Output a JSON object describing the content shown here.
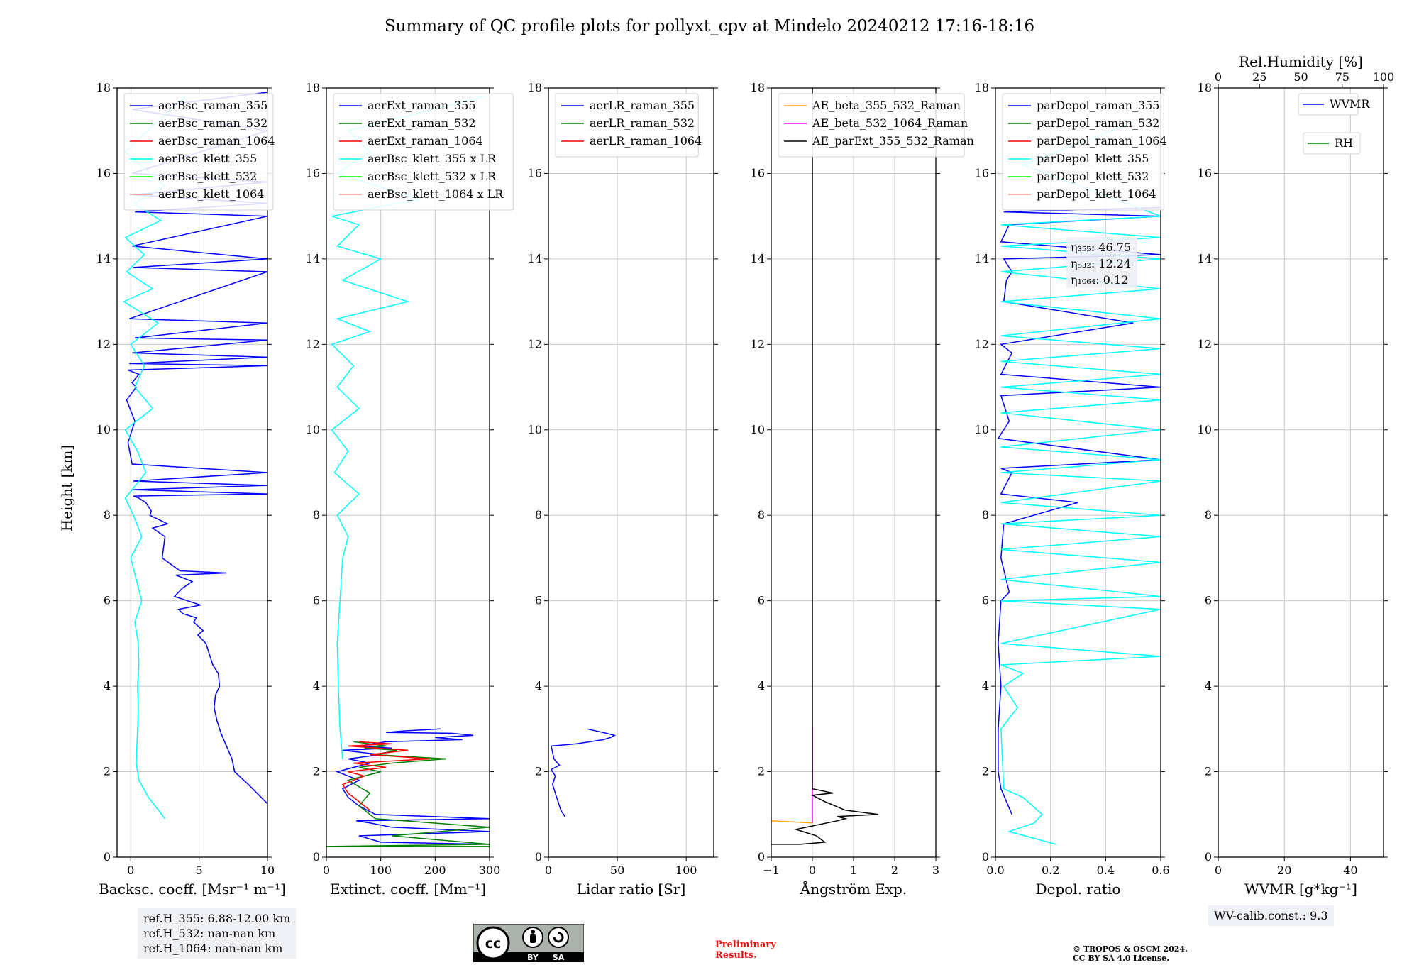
{
  "title": "Summary of QC profile plots for pollyxt_cpv at Mindelo 20240212 17:16-18:16",
  "ylabel": "Height [km]",
  "chart_data": [
    {
      "type": "line",
      "id": "bsc",
      "xlabel": "Backsc. coeff. [Msr⁻¹ m⁻¹]",
      "xlim": [
        -1,
        10
      ],
      "ylim": [
        0,
        18
      ],
      "xticks": [
        0,
        5,
        10
      ],
      "yticks": [
        0,
        2,
        4,
        6,
        8,
        10,
        12,
        14,
        16,
        18
      ],
      "legend": [
        "aerBsc_raman_355",
        "aerBsc_raman_532",
        "aerBsc_raman_1064",
        "aerBsc_klett_355",
        "aerBsc_klett_532",
        "aerBsc_klett_1064"
      ],
      "legend_colors": [
        "#0000ff",
        "#008000",
        "#ff0000",
        "#00ffff",
        "#00ff00",
        "#ff9090"
      ],
      "series": [
        {
          "name": "aerBsc_raman_355",
          "color": "#0000ff",
          "x": [
            10.0,
            8.6,
            7.6,
            7.4,
            7.0,
            6.6,
            6.3,
            6.1,
            6.2,
            6.5,
            6.4,
            6.0,
            5.7,
            5.5,
            4.9,
            5.3,
            4.6,
            4.8,
            3.8,
            3.5,
            5.1,
            3.2,
            3.8,
            4.5,
            3.3,
            7.0,
            3.6,
            2.3,
            2.5,
            1.6,
            2.7,
            1.4,
            1.5,
            1.1,
            0.6,
            0.2,
            10.0,
            0.2,
            10.0,
            0.2,
            10.0,
            0.1,
            -0.2,
            0.3,
            -0.3,
            0.4,
            0.1,
            0.6,
            -0.2,
            10.0,
            -0.1,
            10.0,
            0.1,
            10.0,
            0.3,
            10.0,
            -0.1,
            10.0,
            0.2,
            10.0,
            0.1,
            10.0,
            0.3,
            5.0,
            10.0,
            0.2,
            10.0,
            0.1,
            10.0,
            0.1,
            10.0
          ],
          "y": [
            1.25,
            1.7,
            2.0,
            2.3,
            2.6,
            2.9,
            3.2,
            3.5,
            3.8,
            4.0,
            4.3,
            4.5,
            4.8,
            5.0,
            5.2,
            5.3,
            5.5,
            5.6,
            5.7,
            5.8,
            5.9,
            6.1,
            6.3,
            6.45,
            6.6,
            6.65,
            6.7,
            7.0,
            7.5,
            7.7,
            7.8,
            8.0,
            8.1,
            8.3,
            8.4,
            8.45,
            8.5,
            8.6,
            8.7,
            8.8,
            9.0,
            9.2,
            9.7,
            10.2,
            10.7,
            11.0,
            11.1,
            11.3,
            11.4,
            11.5,
            11.55,
            11.7,
            11.8,
            12.1,
            12.15,
            12.5,
            12.6,
            13.7,
            13.8,
            14.0,
            14.3,
            15.0,
            15.1,
            15.2,
            15.3,
            15.5,
            15.8,
            16.0,
            17.0,
            17.5,
            17.9
          ]
        },
        {
          "name": "aerBsc_klett_355",
          "color": "#00ffff",
          "x": [
            2.5,
            1.3,
            0.6,
            0.4,
            0.45,
            0.5,
            0.55,
            0.5,
            0.6,
            0.55,
            0.3,
            0.8,
            0.4,
            0.0,
            0.8,
            0.2,
            -0.4,
            1.1,
            0.5,
            -0.4,
            1.6,
            0.3,
            1.0,
            0.0,
            2.0,
            -0.5,
            1.6,
            -0.3,
            1.0,
            -0.4,
            2.2,
            0.2,
            2.5,
            -0.4,
            1.2,
            4.0
          ],
          "y": [
            0.9,
            1.4,
            1.8,
            2.2,
            2.6,
            3.0,
            3.5,
            4.0,
            4.5,
            5.0,
            5.5,
            6.0,
            6.5,
            7.0,
            7.5,
            8.0,
            8.4,
            9.0,
            9.5,
            10.0,
            10.5,
            11.0,
            11.5,
            12.0,
            12.5,
            13.0,
            13.3,
            13.7,
            14.1,
            14.5,
            14.9,
            15.3,
            15.7,
            16.5,
            17.0,
            17.8
          ]
        }
      ]
    },
    {
      "type": "line",
      "id": "ext",
      "xlabel": "Extinct. coeff. [Mm⁻¹]",
      "xlim": [
        0,
        300
      ],
      "ylim": [
        0,
        18
      ],
      "xticks": [
        0,
        100,
        200,
        300
      ],
      "yticks": [
        0,
        2,
        4,
        6,
        8,
        10,
        12,
        14,
        16,
        18
      ],
      "legend": [
        "aerExt_raman_355",
        "aerExt_raman_532",
        "aerExt_raman_1064",
        "aerBsc_klett_355 x LR",
        "aerBsc_klett_532 x LR",
        "aerBsc_klett_1064 x LR"
      ],
      "legend_colors": [
        "#0000ff",
        "#008000",
        "#ff0000",
        "#00ffff",
        "#00ff00",
        "#ff9090"
      ],
      "series": [
        {
          "name": "aerExt_raman_355",
          "color": "#0000ff",
          "x": [
            300,
            100,
            60,
            300,
            120,
            80,
            55,
            300,
            90,
            60,
            40,
            30,
            60,
            20,
            50,
            80,
            40,
            100,
            30,
            120,
            60,
            110,
            250,
            200,
            270,
            230,
            110,
            140,
            210
          ],
          "y": [
            0.3,
            0.35,
            0.5,
            0.6,
            0.7,
            0.8,
            0.85,
            0.9,
            1.0,
            1.2,
            1.4,
            1.6,
            1.8,
            2.0,
            2.1,
            2.2,
            2.3,
            2.4,
            2.5,
            2.55,
            2.6,
            2.7,
            2.75,
            2.8,
            2.85,
            2.9,
            2.92,
            2.95,
            3.0
          ]
        },
        {
          "name": "aerExt_raman_532",
          "color": "#008000",
          "x": [
            300,
            0,
            300,
            120,
            300,
            90,
            60,
            80,
            40,
            100,
            60,
            120,
            220,
            90,
            130,
            70,
            110,
            50
          ],
          "y": [
            0.25,
            0.25,
            0.3,
            0.5,
            0.7,
            0.9,
            1.2,
            1.5,
            1.8,
            2.0,
            2.1,
            2.2,
            2.3,
            2.4,
            2.5,
            2.55,
            2.6,
            2.7
          ]
        },
        {
          "name": "aerExt_raman_1064",
          "color": "#ff0000",
          "x": [
            80,
            60,
            40,
            30,
            70,
            40,
            110,
            50,
            190,
            80,
            150,
            40,
            120,
            60
          ],
          "y": [
            1.1,
            1.3,
            1.5,
            1.7,
            1.9,
            2.0,
            2.1,
            2.2,
            2.3,
            2.4,
            2.5,
            2.6,
            2.65,
            2.7
          ]
        },
        {
          "name": "aerBsc_klett_355 x LR",
          "color": "#00ffff",
          "x": [
            30,
            25,
            22,
            20,
            25,
            30,
            40,
            20,
            60,
            15,
            40,
            10,
            60,
            20,
            50,
            10,
            80,
            20,
            150,
            30,
            100,
            20,
            60,
            10,
            170,
            20,
            80,
            40,
            290
          ],
          "y": [
            2.3,
            3.0,
            4.0,
            5.0,
            6.0,
            7.0,
            7.5,
            8.0,
            8.5,
            9.0,
            9.5,
            10.0,
            10.5,
            11.0,
            11.5,
            12.0,
            12.3,
            12.6,
            13.0,
            13.5,
            14.0,
            14.3,
            14.8,
            15.0,
            15.4,
            16.0,
            16.5,
            17.0,
            17.8
          ]
        }
      ]
    },
    {
      "type": "line",
      "id": "lr",
      "xlabel": "Lidar ratio [Sr]",
      "xlim": [
        0,
        120
      ],
      "ylim": [
        0,
        18
      ],
      "xticks": [
        0,
        50,
        100
      ],
      "yticks": [
        0,
        2,
        4,
        6,
        8,
        10,
        12,
        14,
        16,
        18
      ],
      "legend": [
        "aerLR_raman_355",
        "aerLR_raman_532",
        "aerLR_raman_1064"
      ],
      "legend_colors": [
        "#0000ff",
        "#008000",
        "#ff0000"
      ],
      "series": [
        {
          "name": "aerLR_raman_355",
          "color": "#0000ff",
          "x": [
            12,
            9,
            6,
            3,
            5,
            2,
            8,
            4,
            2,
            20,
            30,
            40,
            45,
            48,
            42,
            35,
            28
          ],
          "y": [
            0.95,
            1.1,
            1.4,
            1.7,
            1.9,
            2.05,
            2.15,
            2.3,
            2.6,
            2.65,
            2.7,
            2.75,
            2.8,
            2.85,
            2.9,
            2.95,
            3.0
          ]
        }
      ]
    },
    {
      "type": "line",
      "id": "ae",
      "xlabel": "Ångström Exp.",
      "xlim": [
        -1,
        3
      ],
      "ylim": [
        0,
        18
      ],
      "xticks": [
        -1,
        0,
        1,
        2,
        3
      ],
      "yticks": [
        0,
        2,
        4,
        6,
        8,
        10,
        12,
        14,
        16,
        18
      ],
      "legend": [
        "AE_beta_355_532_Raman",
        "AE_beta_532_1064_Raman",
        "AE_parExt_355_532_Raman"
      ],
      "legend_colors": [
        "#ffa500",
        "#ff00ff",
        "#000000"
      ],
      "series": [
        {
          "name": "AE_beta_355_532_Raman",
          "color": "#ffa500",
          "x": [
            -1,
            0
          ],
          "y": [
            0.85,
            0.8
          ]
        },
        {
          "name": "AE_beta_532_1064_Raman",
          "color": "#ff00ff",
          "x": [
            0,
            0
          ],
          "y": [
            0.8,
            3.05
          ]
        },
        {
          "name": "AE_parExt_355_532_Raman",
          "color": "#000000",
          "x": [
            -1,
            -0.3,
            0.3,
            0.1,
            -0.4,
            0.1,
            0.6,
            0.8,
            0.6,
            1.6,
            0.8,
            0.3,
            0.0,
            0.5,
            0.0,
            0.0,
            0.0,
            0.0
          ],
          "y": [
            0.3,
            0.3,
            0.35,
            0.5,
            0.65,
            0.75,
            0.85,
            0.9,
            0.95,
            1.0,
            1.1,
            1.3,
            1.45,
            1.5,
            1.6,
            3.1,
            10.0,
            18.0
          ]
        }
      ]
    },
    {
      "type": "line",
      "id": "depol",
      "xlabel": "Depol. ratio",
      "xlim": [
        0,
        0.6
      ],
      "ylim": [
        0,
        18
      ],
      "xticks": [
        0.0,
        0.2,
        0.4,
        0.6
      ],
      "yticks": [
        0,
        2,
        4,
        6,
        8,
        10,
        12,
        14,
        16,
        18
      ],
      "legend": [
        "parDepol_raman_355",
        "parDepol_raman_532",
        "parDepol_raman_1064",
        "parDepol_klett_355",
        "parDepol_klett_532",
        "parDepol_klett_1064"
      ],
      "legend_colors": [
        "#0000ff",
        "#008000",
        "#ff0000",
        "#00ffff",
        "#00ff00",
        "#ff9090"
      ],
      "annotations": [
        "η₃₅₅: 46.75",
        "η₅₃₂: 12.24",
        "η₁₀₆₄: 0.12"
      ],
      "series": [
        {
          "name": "parDepol_raman_355",
          "color": "#0000ff",
          "x": [
            0.06,
            0.04,
            0.02,
            0.01,
            0.01,
            0.02,
            0.01,
            0.02,
            0.05,
            0.02,
            0.03,
            0.3,
            0.02,
            0.06,
            0.02,
            0.6,
            0.01,
            0.05,
            0.02,
            0.6,
            0.02,
            0.06,
            0.02,
            0.5,
            0.03,
            0.04,
            0.06,
            0.03,
            0.6,
            0.02,
            0.05,
            0.6,
            0.03,
            0.6
          ],
          "y": [
            1.0,
            1.3,
            1.6,
            2.0,
            3.0,
            4.0,
            5.0,
            6.0,
            6.2,
            7.0,
            7.8,
            8.3,
            8.5,
            9.0,
            9.1,
            9.3,
            9.8,
            10.2,
            10.8,
            11.0,
            11.3,
            11.8,
            12.0,
            12.5,
            13.0,
            13.5,
            13.7,
            14.0,
            14.1,
            14.4,
            14.8,
            15.0,
            15.1,
            15.2
          ]
        },
        {
          "name": "parDepol_klett_355",
          "color": "#00ffff",
          "x": [
            0.22,
            0.05,
            0.14,
            0.17,
            0.1,
            0.03,
            0.02,
            0.08,
            0.03,
            0.1,
            0.02,
            0.6,
            0.02,
            0.6,
            0.02,
            0.6,
            0.02,
            0.6,
            0.02,
            0.6,
            0.02,
            0.6,
            0.02,
            0.6,
            0.02,
            0.6,
            0.02,
            0.6,
            0.02,
            0.6,
            0.02,
            0.6,
            0.02,
            0.6,
            0.02,
            0.6,
            0.02,
            0.6,
            0.02,
            0.6,
            0.02,
            0.6,
            0.02,
            0.6,
            0.1,
            0.5
          ],
          "y": [
            0.3,
            0.6,
            0.8,
            1.0,
            1.4,
            1.6,
            3.0,
            3.5,
            4.0,
            4.3,
            4.5,
            4.7,
            5.0,
            5.8,
            6.0,
            6.1,
            6.5,
            6.9,
            7.2,
            7.5,
            7.8,
            8.0,
            8.3,
            8.8,
            9.0,
            9.3,
            9.6,
            10.0,
            10.4,
            10.7,
            11.0,
            11.3,
            11.6,
            11.9,
            12.2,
            12.6,
            13.0,
            13.3,
            13.7,
            14.0,
            14.3,
            14.5,
            14.8,
            15.0,
            16.2,
            17.2
          ]
        }
      ]
    },
    {
      "type": "line",
      "id": "wv",
      "xlabel": "WVMR [g*kg⁻¹]",
      "xlim": [
        0,
        50
      ],
      "ylim": [
        0,
        18
      ],
      "xticks": [
        0,
        20,
        40
      ],
      "yticks": [
        0,
        2,
        4,
        6,
        8,
        10,
        12,
        14,
        16,
        18
      ],
      "top_xlabel": "Rel.Humidity [%]",
      "top_xlim": [
        0,
        100
      ],
      "top_xticks": [
        0,
        25,
        50,
        75,
        100
      ],
      "legend": [
        "WVMR",
        "RH"
      ],
      "legend_colors": [
        "#0000ff",
        "#008000"
      ],
      "series": []
    }
  ],
  "ref_box": [
    "ref.H_355: 6.88-12.00 km",
    "ref.H_532: nan-nan km",
    "ref.H_1064: nan-nan km"
  ],
  "wv_calib": "WV-calib.const.: 9.3",
  "preliminary": [
    "Preliminary",
    "Results."
  ],
  "copyright": [
    "© TROPOS & OSCM 2024.",
    "CC BY SA 4.0 License."
  ],
  "license_badge": {
    "cc": "cc",
    "by": "BY",
    "sa": "SA"
  }
}
